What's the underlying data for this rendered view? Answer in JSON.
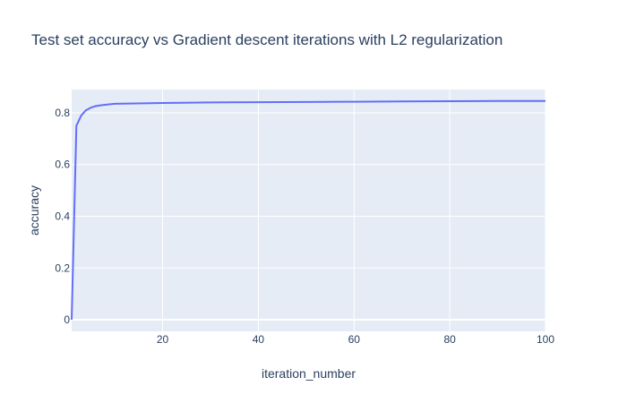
{
  "chart_data": {
    "type": "line",
    "title": "Test set accuracy vs Gradient descent iterations with L2 regularization",
    "xlabel": "iteration_number",
    "ylabel": "accuracy",
    "xlim": [
      1,
      100
    ],
    "ylim": [
      -0.045,
      0.89
    ],
    "xticks": [
      20,
      40,
      60,
      80,
      100
    ],
    "yticks": [
      0,
      0.2,
      0.4,
      0.6,
      0.8
    ],
    "grid": true,
    "legend": "none",
    "colors": {
      "plot_bg": "#e5ecf6",
      "line": "#636efa",
      "grid": "#ffffff",
      "text": "#2a3f5f"
    },
    "series": [
      {
        "x": [
          1,
          2,
          3,
          4,
          5,
          6,
          7,
          8,
          10,
          20,
          30,
          40,
          50,
          60,
          70,
          80,
          90,
          100
        ],
        "y": [
          0.0,
          0.75,
          0.79,
          0.81,
          0.82,
          0.826,
          0.829,
          0.831,
          0.835,
          0.838,
          0.84,
          0.841,
          0.842,
          0.843,
          0.844,
          0.845,
          0.846,
          0.846
        ]
      }
    ]
  }
}
